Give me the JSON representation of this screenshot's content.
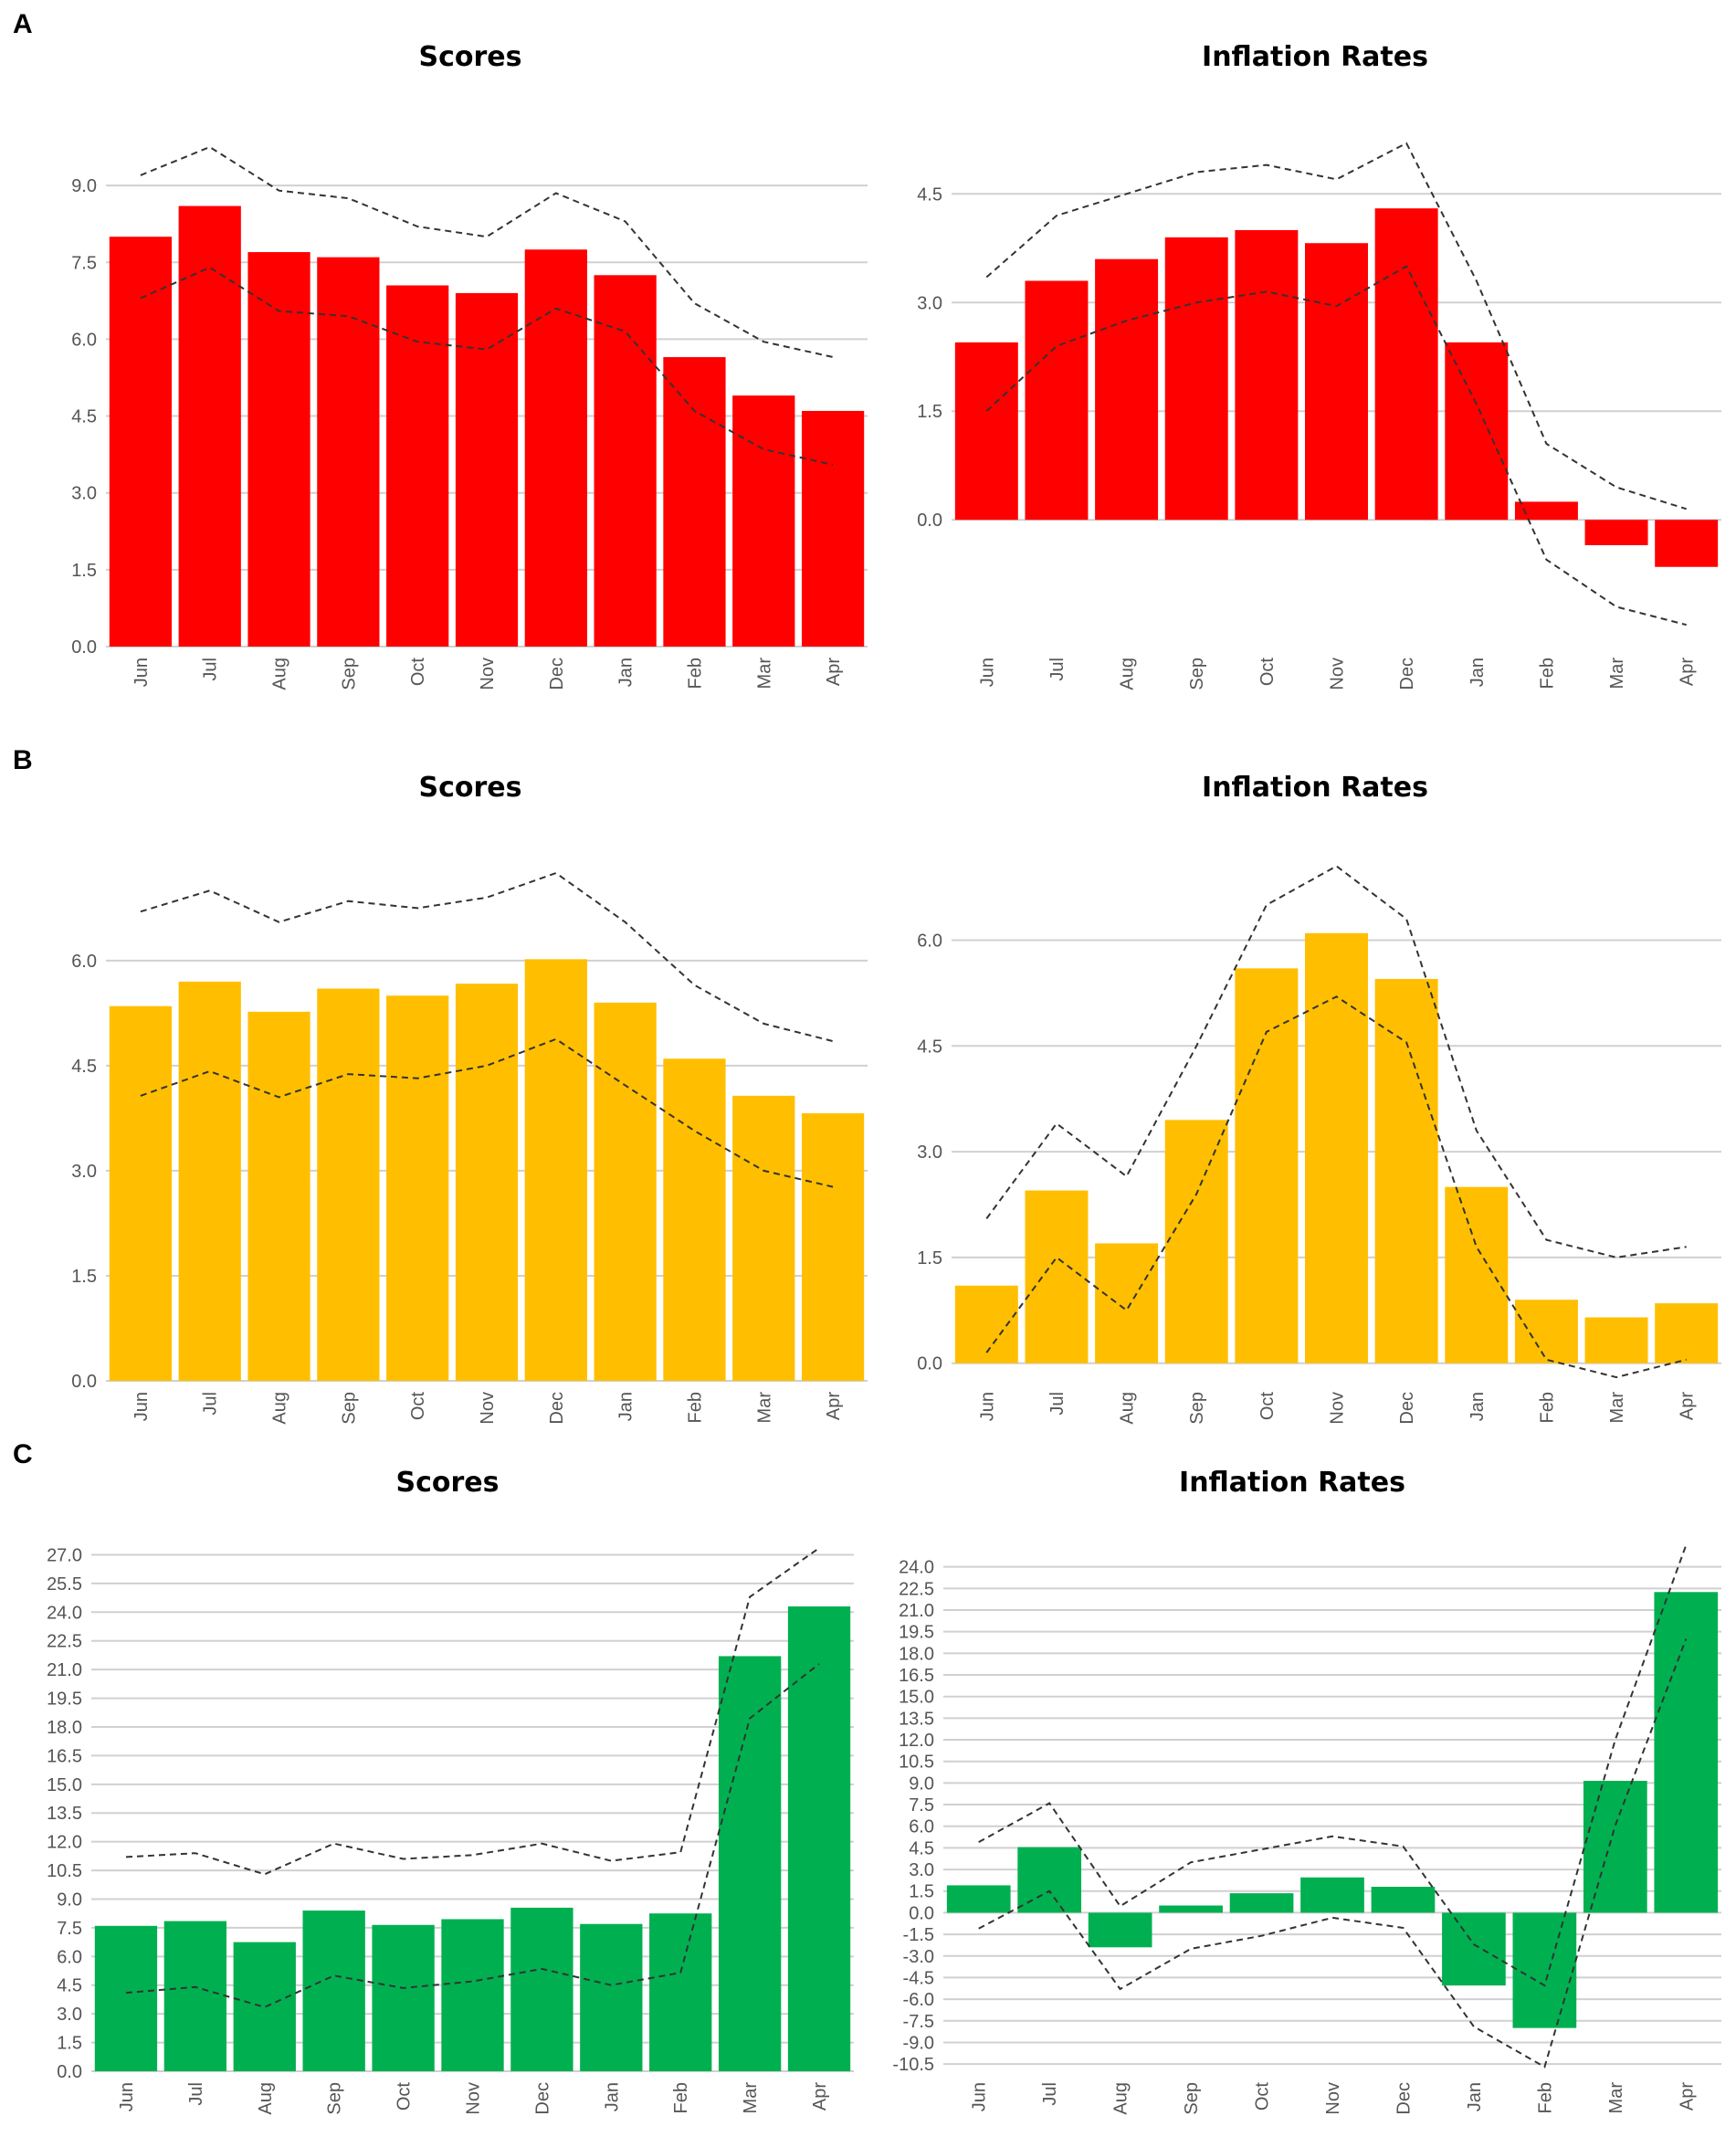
{
  "panels": [
    {
      "letter": "A"
    },
    {
      "letter": "B"
    },
    {
      "letter": "C"
    }
  ],
  "chart_data": [
    {
      "panel": "A",
      "type": "bar",
      "title": "Scores",
      "color": "#ff0000",
      "categories": [
        "Jun",
        "Jul",
        "Aug",
        "Sep",
        "Oct",
        "Nov",
        "Dec",
        "Jan",
        "Feb",
        "Mar",
        "Apr"
      ],
      "values": [
        8.0,
        8.6,
        7.7,
        7.6,
        7.05,
        6.9,
        7.75,
        7.25,
        5.65,
        4.9,
        4.6
      ],
      "upper": [
        9.2,
        9.75,
        8.9,
        8.75,
        8.2,
        8.0,
        8.85,
        8.3,
        6.7,
        5.95,
        5.65
      ],
      "lower": [
        6.8,
        7.4,
        6.55,
        6.45,
        5.95,
        5.8,
        6.6,
        6.15,
        4.6,
        3.85,
        3.55
      ],
      "yticks": [
        "0.0",
        "1.5",
        "3.0",
        "4.5",
        "6.0",
        "7.5",
        "9.0"
      ],
      "ylim": [
        0,
        10.25
      ],
      "xlabel": "",
      "ylabel": "",
      "grid": true
    },
    {
      "panel": "A",
      "type": "bar",
      "title": "Inflation Rates",
      "color": "#ff0000",
      "categories": [
        "Jun",
        "Jul",
        "Aug",
        "Sep",
        "Oct",
        "Nov",
        "Dec",
        "Jan",
        "Feb",
        "Mar",
        "Apr"
      ],
      "values": [
        2.45,
        3.3,
        3.6,
        3.9,
        4.0,
        3.82,
        4.3,
        2.45,
        0.25,
        -0.35,
        -0.65
      ],
      "upper": [
        3.35,
        4.2,
        4.5,
        4.8,
        4.9,
        4.7,
        5.2,
        3.3,
        1.05,
        0.45,
        0.15
      ],
      "lower": [
        1.5,
        2.4,
        2.75,
        3.0,
        3.15,
        2.95,
        3.5,
        1.6,
        -0.55,
        -1.2,
        -1.45
      ],
      "yticks": [
        "0.0",
        "1.5",
        "3.0",
        "4.5"
      ],
      "ylim": [
        -1.75,
        5.5
      ],
      "xlabel": "",
      "ylabel": "",
      "grid": true
    },
    {
      "panel": "B",
      "type": "bar",
      "title": "Scores",
      "color": "#ffbf00",
      "categories": [
        "Jun",
        "Jul",
        "Aug",
        "Sep",
        "Oct",
        "Nov",
        "Dec",
        "Jan",
        "Feb",
        "Mar",
        "Apr"
      ],
      "values": [
        5.35,
        5.7,
        5.27,
        5.6,
        5.5,
        5.67,
        6.02,
        5.4,
        4.6,
        4.07,
        3.82
      ],
      "upper": [
        6.7,
        7.0,
        6.55,
        6.85,
        6.75,
        6.9,
        7.25,
        6.55,
        5.65,
        5.1,
        4.85
      ],
      "lower": [
        4.07,
        4.42,
        4.05,
        4.38,
        4.32,
        4.5,
        4.88,
        4.22,
        3.57,
        3.0,
        2.77
      ],
      "yticks": [
        "0.0",
        "1.5",
        "3.0",
        "4.5",
        "6.0"
      ],
      "ylim": [
        0,
        7.55
      ],
      "xlabel": "",
      "ylabel": "",
      "grid": true
    },
    {
      "panel": "B",
      "type": "bar",
      "title": "Inflation Rates",
      "color": "#ffbf00",
      "categories": [
        "Jun",
        "Jul",
        "Aug",
        "Sep",
        "Oct",
        "Nov",
        "Dec",
        "Jan",
        "Feb",
        "Mar",
        "Apr"
      ],
      "values": [
        1.1,
        2.45,
        1.7,
        3.45,
        5.6,
        6.1,
        5.45,
        2.5,
        0.9,
        0.65,
        0.85
      ],
      "upper": [
        2.05,
        3.4,
        2.65,
        4.5,
        6.5,
        7.05,
        6.3,
        3.3,
        1.75,
        1.5,
        1.65
      ],
      "lower": [
        0.15,
        1.5,
        0.75,
        2.4,
        4.7,
        5.2,
        4.55,
        1.65,
        0.05,
        -0.2,
        0.05
      ],
      "yticks": [
        "0.0",
        "1.5",
        "3.0",
        "4.5",
        "6.0"
      ],
      "ylim": [
        -0.25,
        7.25
      ],
      "xlabel": "",
      "ylabel": "",
      "grid": true
    },
    {
      "panel": "C",
      "type": "bar",
      "title": "Scores",
      "color": "#00b050",
      "categories": [
        "Jun",
        "Jul",
        "Aug",
        "Sep",
        "Oct",
        "Nov",
        "Dec",
        "Jan",
        "Feb",
        "Mar",
        "Apr"
      ],
      "values": [
        7.6,
        7.85,
        6.75,
        8.4,
        7.65,
        7.95,
        8.55,
        7.7,
        8.25,
        21.7,
        24.3
      ],
      "upper": [
        11.2,
        11.4,
        10.3,
        11.9,
        11.1,
        11.3,
        11.9,
        11.0,
        11.45,
        24.8,
        27.35
      ],
      "lower": [
        4.1,
        4.4,
        3.35,
        5.0,
        4.35,
        4.7,
        5.35,
        4.5,
        5.15,
        18.45,
        21.3
      ],
      "yticks": [
        "0.0",
        "1.5",
        "3.0",
        "4.5",
        "6.0",
        "7.5",
        "9.0",
        "10.5",
        "12.0",
        "13.5",
        "15.0",
        "16.5",
        "18.0",
        "19.5",
        "21.0",
        "22.5",
        "24.0",
        "25.5",
        "27.0"
      ],
      "ylim": [
        0,
        27.5
      ],
      "xlabel": "",
      "ylabel": "",
      "grid": true
    },
    {
      "panel": "C",
      "type": "bar",
      "title": "Inflation Rates",
      "color": "#00b050",
      "categories": [
        "Jun",
        "Jul",
        "Aug",
        "Sep",
        "Oct",
        "Nov",
        "Dec",
        "Jan",
        "Feb",
        "Mar",
        "Apr"
      ],
      "values": [
        1.9,
        4.55,
        -2.4,
        0.5,
        1.35,
        2.45,
        1.8,
        -5.05,
        -8.0,
        9.15,
        22.25
      ],
      "upper": [
        4.9,
        7.6,
        0.45,
        3.5,
        4.4,
        5.3,
        4.6,
        -2.2,
        -5.05,
        12.0,
        25.5
      ],
      "lower": [
        -1.1,
        1.5,
        -5.3,
        -2.5,
        -1.6,
        -0.35,
        -1.05,
        -7.9,
        -10.7,
        6.05,
        19.0
      ],
      "yticks": [
        "-10.5",
        "-9.0",
        "-7.5",
        "-6.0",
        "-4.5",
        "-3.0",
        "-1.5",
        "0.0",
        "1.5",
        "3.0",
        "4.5",
        "6.0",
        "7.5",
        "9.0",
        "10.5",
        "12.0",
        "13.5",
        "15.0",
        "16.5",
        "18.0",
        "19.5",
        "21.0",
        "22.5",
        "24.0"
      ],
      "ylim": [
        -11,
        25.5
      ],
      "xlabel": "",
      "ylabel": "",
      "grid": true
    }
  ]
}
